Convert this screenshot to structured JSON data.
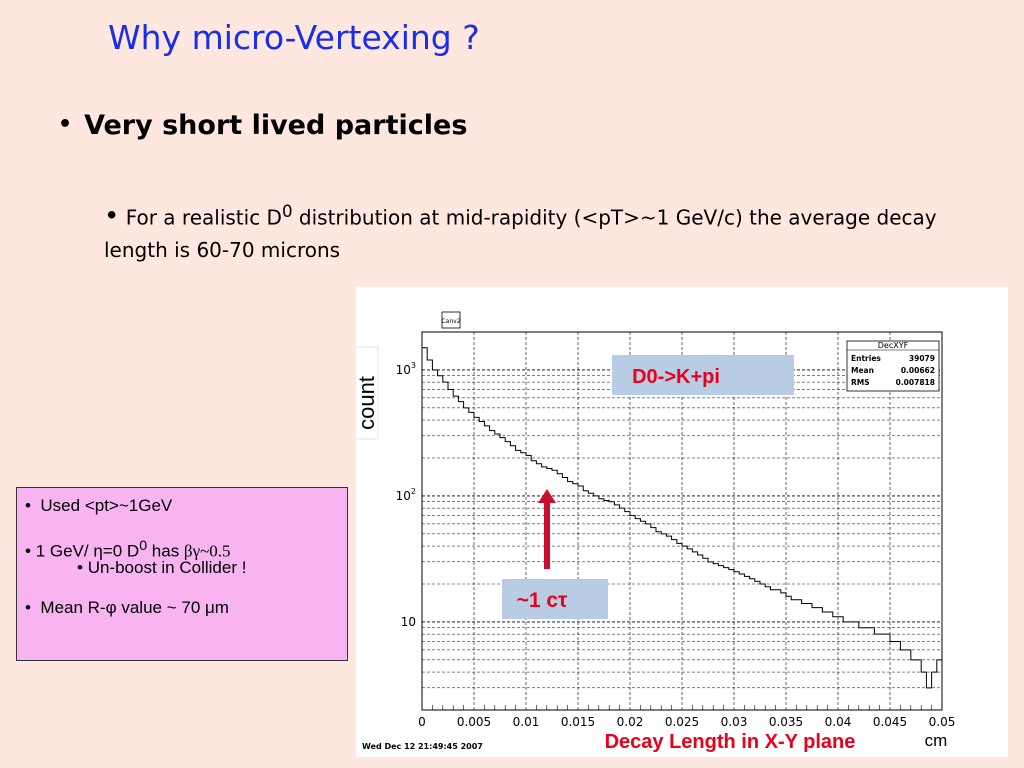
{
  "slide": {
    "title": "Why micro-Vertexing ?",
    "bullet1": "Very short lived particles",
    "bullet2_part1": "For a realistic D",
    "bullet2_sup": "0",
    "bullet2_part2": " distribution at mid-rapidity (<pT>~1 GeV/c) the average decay length is 60-70 microns"
  },
  "note_box": {
    "line1": "Used <pt>~1GeV",
    "line2_a": "1 GeV/ ",
    "line2_eta": "η",
    "line2_b": "=0 D",
    "line2_sup": "0",
    "line2_c": " has ",
    "line2_bg": "βγ~0.5",
    "line3": "Un-boost in Collider !",
    "line4_a": "Mean R-",
    "line4_phi": "φ",
    "line4_b": " value ~ 70 ",
    "line4_mu": "μ",
    "line4_c": "m"
  },
  "chart_data": {
    "type": "line",
    "histogram_name": "DecXYF",
    "pad_label": "Canv2",
    "stats": {
      "entries_label": "Entries",
      "entries": "39079",
      "mean_label": "Mean",
      "mean": "0.00662",
      "rms_label": "RMS",
      "rms": "0.007818"
    },
    "legend_label": "D0->K+pi",
    "annotation": "~1 cτ",
    "ylabel": "count",
    "xlabel": "Decay Length in X-Y plane",
    "xunit": "cm",
    "timestamp": "Wed Dec 12 21:49:45 2007",
    "y_scale": "log",
    "ylim": [
      2,
      2000
    ],
    "xlim": [
      0,
      0.05
    ],
    "x_ticks": [
      "0",
      "0.005",
      "0.01",
      "0.015",
      "0.02",
      "0.025",
      "0.03",
      "0.035",
      "0.04",
      "0.045",
      "0.05"
    ],
    "y_ticks": [
      {
        "base": "10",
        "exp": "3",
        "value": 1000
      },
      {
        "base": "10",
        "exp": "2",
        "value": 100
      },
      {
        "base": "10",
        "exp": "",
        "value": 10
      }
    ],
    "grid": true,
    "colors": {
      "legend_bg": "#b8cde4",
      "legend_text": "#e8001c",
      "arrow": "#c8102e",
      "xlabel": "#e8001c"
    },
    "bins_width": 0.0005,
    "values": [
      1500,
      1200,
      1000,
      900,
      800,
      700,
      620,
      560,
      500,
      460,
      420,
      390,
      360,
      330,
      310,
      290,
      270,
      250,
      230,
      220,
      210,
      190,
      180,
      170,
      165,
      160,
      150,
      140,
      130,
      125,
      120,
      110,
      105,
      100,
      95,
      92,
      90,
      85,
      80,
      75,
      70,
      66,
      63,
      60,
      56,
      52,
      50,
      48,
      45,
      42,
      40,
      38,
      36,
      34,
      32,
      30,
      29,
      28,
      27,
      26,
      25,
      24,
      23,
      22,
      21,
      20,
      19,
      18,
      18,
      17,
      16,
      15,
      15,
      14,
      14,
      13,
      13,
      12,
      12,
      11,
      11,
      10,
      10,
      10,
      9,
      9,
      9,
      8,
      8,
      8,
      7,
      7,
      6,
      6,
      5,
      5,
      4,
      3,
      4,
      5
    ]
  }
}
